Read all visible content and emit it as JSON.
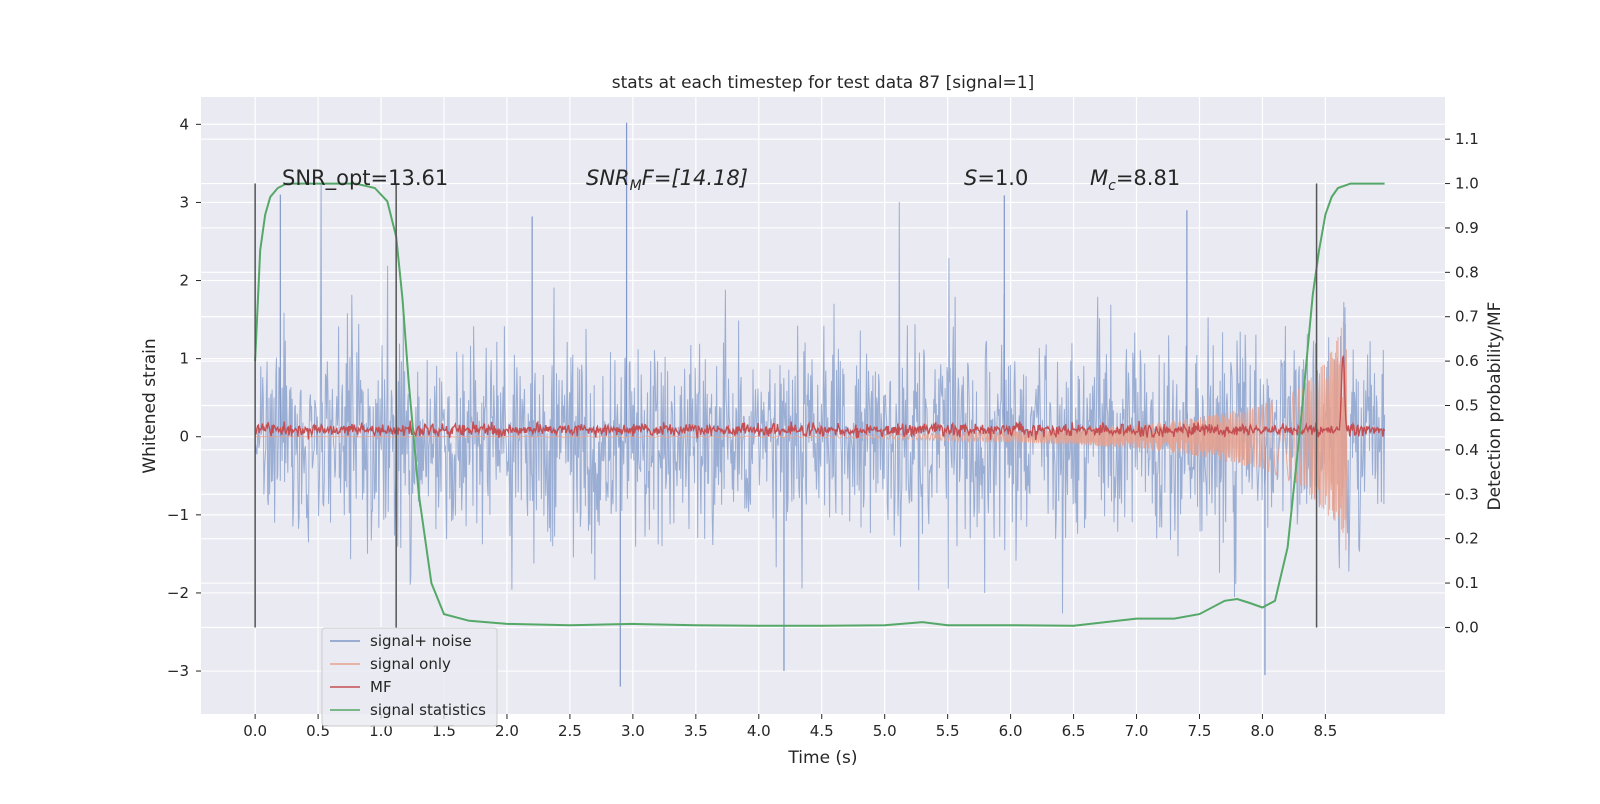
{
  "chart_data": {
    "type": "line",
    "title": "stats at each timestep for test data 87 [signal=1]",
    "xlabel": "Time (s)",
    "ylabel_left": "Whitened strain",
    "ylabel_right": "Detection probability/MF",
    "xlim": [
      -0.43,
      9.45
    ],
    "ylim_left": [
      -3.55,
      4.35
    ],
    "ylim_right": [
      -0.195,
      1.195
    ],
    "xticks": [
      "0.0",
      "0.5",
      "1.0",
      "1.5",
      "2.0",
      "2.5",
      "3.0",
      "3.5",
      "4.0",
      "4.5",
      "5.0",
      "5.5",
      "6.0",
      "6.5",
      "7.0",
      "7.5",
      "8.0",
      "8.5"
    ],
    "yticks_left": [
      "−3",
      "−2",
      "−1",
      "0",
      "1",
      "2",
      "3",
      "4"
    ],
    "yticks_right": [
      "0.0",
      "0.1",
      "0.2",
      "0.3",
      "0.4",
      "0.5",
      "0.6",
      "0.7",
      "0.8",
      "0.9",
      "1.0",
      "1.1"
    ],
    "grid": true,
    "legend_position": "lower-left",
    "annotations": {
      "snr_opt": "SNR_opt=13.61",
      "snr_mf_main": "SNR",
      "snr_mf_sub": "M",
      "snr_mf_rest": "F=[14.18]",
      "s_main": "S",
      "s_rest": "=1.0",
      "mc_main": "M",
      "mc_sub": "c",
      "mc_rest": "=8.81"
    },
    "detection_markers_time": [
      0.0,
      1.12,
      8.43
    ],
    "series": [
      {
        "name": "signal+ noise",
        "color": "#7f98c8",
        "axis": "left",
        "x_range": [
          0.0,
          8.97
        ],
        "typical_band": [
          -1.5,
          1.5
        ],
        "spikes": [
          [
            2.95,
            4.02
          ],
          [
            5.95,
            3.09
          ],
          [
            2.2,
            2.82
          ],
          [
            2.9,
            -3.2
          ],
          [
            8.02,
            -3.05
          ],
          [
            0.2,
            3.1
          ],
          [
            4.2,
            -3.0
          ],
          [
            7.4,
            2.9
          ]
        ]
      },
      {
        "name": "signal only",
        "color": "#e8a08c",
        "axis": "left",
        "x_range": [
          0.0,
          8.67
        ],
        "envelope": [
          [
            4.5,
            0.01
          ],
          [
            5.0,
            0.03
          ],
          [
            5.5,
            0.05
          ],
          [
            6.0,
            0.07
          ],
          [
            6.5,
            0.1
          ],
          [
            7.0,
            0.15
          ],
          [
            7.5,
            0.25
          ],
          [
            8.0,
            0.42
          ],
          [
            8.3,
            0.62
          ],
          [
            8.5,
            0.95
          ],
          [
            8.6,
            1.3
          ],
          [
            8.65,
            1.5
          ]
        ]
      },
      {
        "name": "MF",
        "color": "#c44e52",
        "axis": "right",
        "baseline": 0.445,
        "noise_amplitude": 0.012,
        "peak": [
          8.64,
          0.61
        ]
      },
      {
        "name": "signal statistics",
        "color": "#55a868",
        "axis": "right",
        "x": [
          0.0,
          0.04,
          0.08,
          0.12,
          0.18,
          0.25,
          0.4,
          0.6,
          0.8,
          0.95,
          1.05,
          1.12,
          1.17,
          1.22,
          1.3,
          1.4,
          1.5,
          1.7,
          2.0,
          2.5,
          3.0,
          3.5,
          4.0,
          4.5,
          5.0,
          5.3,
          5.5,
          6.0,
          6.5,
          7.0,
          7.3,
          7.5,
          7.7,
          7.8,
          7.9,
          8.0,
          8.1,
          8.2,
          8.3,
          8.4,
          8.45,
          8.5,
          8.55,
          8.6,
          8.7,
          8.8,
          8.9,
          8.97
        ],
        "y": [
          0.6,
          0.85,
          0.93,
          0.97,
          0.99,
          1.0,
          1.0,
          1.0,
          1.0,
          0.99,
          0.96,
          0.88,
          0.74,
          0.55,
          0.3,
          0.1,
          0.03,
          0.015,
          0.008,
          0.005,
          0.008,
          0.005,
          0.004,
          0.004,
          0.005,
          0.012,
          0.005,
          0.005,
          0.004,
          0.02,
          0.02,
          0.03,
          0.06,
          0.064,
          0.055,
          0.045,
          0.06,
          0.18,
          0.45,
          0.75,
          0.85,
          0.93,
          0.97,
          0.99,
          1.0,
          1.0,
          1.0,
          1.0
        ]
      }
    ]
  }
}
